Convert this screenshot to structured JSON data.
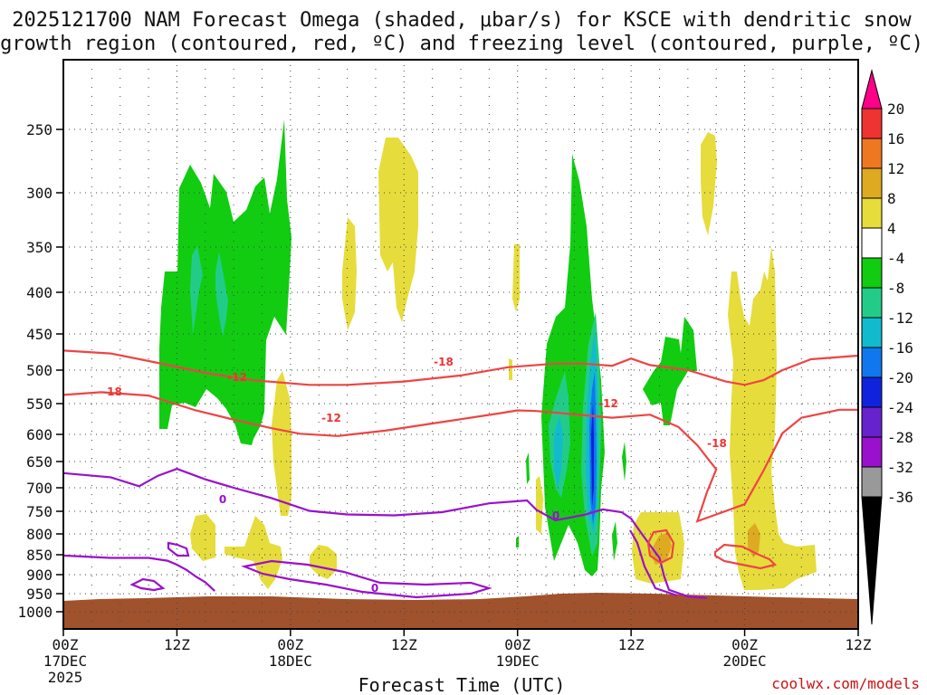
{
  "chart_data": {
    "type": "time-height cross section",
    "title_line1": "2025121700 NAM Forecast Omega (shaded, μbar/s) for KSCE with dendritic snow",
    "title_line2": "growth region (contoured, red, ºC) and freezing level (contoured, purple, ºC)",
    "xlabel": "Forecast Time (UTC)",
    "credit": "coolwx.com/models",
    "x_range_hours": [
      0,
      84
    ],
    "y_range_mb": [
      200,
      1050
    ],
    "pressure_levels": [
      "250",
      "300",
      "350",
      "400",
      "450",
      "500",
      "550",
      "600",
      "650",
      "700",
      "750",
      "800",
      "850",
      "900",
      "950",
      "1000"
    ],
    "x_ticks": [
      {
        "hour": 0,
        "time": "00Z",
        "date": "17DEC",
        "year": "2025"
      },
      {
        "hour": 12,
        "time": "12Z",
        "date": "",
        "year": ""
      },
      {
        "hour": 24,
        "time": "00Z",
        "date": "18DEC",
        "year": ""
      },
      {
        "hour": 36,
        "time": "12Z",
        "date": "",
        "year": ""
      },
      {
        "hour": 48,
        "time": "00Z",
        "date": "19DEC",
        "year": ""
      },
      {
        "hour": 60,
        "time": "12Z",
        "date": "",
        "year": ""
      },
      {
        "hour": 72,
        "time": "00Z",
        "date": "20DEC",
        "year": ""
      },
      {
        "hour": 84,
        "time": "12Z",
        "date": "",
        "year": ""
      }
    ],
    "colorbar": {
      "labels": [
        "20",
        "16",
        "12",
        "8",
        "4",
        "-4",
        "-8",
        "-12",
        "-16",
        "-20",
        "-24",
        "-28",
        "-32",
        "-36"
      ],
      "colors": [
        "#ff0088",
        "#ee3333",
        "#ee7722",
        "#ddaa22",
        "#e6dc3c",
        "#ffffff",
        "#11cc11",
        "#22cc88",
        "#11bbcc",
        "#1177ee",
        "#1122dd",
        "#6622cc",
        "#9911cc",
        "#999999",
        "#000000"
      ]
    },
    "contour_labels": {
      "red": [
        "-18",
        "-12",
        "-18",
        "-12",
        "-12",
        "-18"
      ],
      "purple": [
        "0",
        "0",
        "0"
      ]
    },
    "series": [
      {
        "name": "-18 ºC (red)",
        "points": [
          [
            0,
            473
          ],
          [
            5,
            477
          ],
          [
            10,
            490
          ],
          [
            15,
            504
          ],
          [
            20,
            515
          ],
          [
            26,
            522
          ],
          [
            30,
            522
          ],
          [
            36,
            517
          ],
          [
            42,
            508
          ],
          [
            47,
            496
          ],
          [
            52,
            491
          ],
          [
            55,
            491
          ],
          [
            58,
            494
          ],
          [
            60,
            484
          ],
          [
            62,
            493
          ],
          [
            66,
            500
          ],
          [
            70,
            517
          ],
          [
            72,
            522
          ],
          [
            74,
            515
          ],
          [
            76,
            500
          ],
          [
            79,
            485
          ],
          [
            84,
            480
          ]
        ]
      },
      {
        "name": "-12 ºC (red)",
        "points": [
          [
            0,
            537
          ],
          [
            4,
            533
          ],
          [
            9,
            538
          ],
          [
            14,
            561
          ],
          [
            18,
            576
          ],
          [
            22,
            590
          ],
          [
            25,
            599
          ],
          [
            29,
            603
          ],
          [
            34,
            594
          ],
          [
            40,
            580
          ],
          [
            46,
            566
          ],
          [
            48,
            561
          ],
          [
            50,
            562
          ],
          [
            53,
            566
          ],
          [
            58,
            573
          ],
          [
            62,
            568
          ],
          [
            65,
            588
          ],
          [
            67,
            620
          ],
          [
            69,
            665
          ],
          [
            68,
            710
          ],
          [
            67,
            772
          ],
          [
            72,
            735
          ],
          [
            74,
            667
          ],
          [
            76,
            598
          ],
          [
            78,
            573
          ],
          [
            82,
            560
          ],
          [
            84,
            560
          ]
        ]
      },
      {
        "name": "0 ºC freezing level (purple)",
        "points": [
          [
            0,
            672
          ],
          [
            5,
            680
          ],
          [
            8,
            697
          ],
          [
            10,
            677
          ],
          [
            12,
            664
          ],
          [
            15,
            684
          ],
          [
            18,
            700
          ],
          [
            22,
            722
          ],
          [
            26,
            749
          ],
          [
            30,
            757
          ],
          [
            35,
            759
          ],
          [
            40,
            752
          ],
          [
            45,
            733
          ],
          [
            49,
            727
          ],
          [
            50,
            747
          ],
          [
            52,
            770
          ],
          [
            55,
            758
          ],
          [
            57,
            746
          ],
          [
            59,
            752
          ],
          [
            60,
            766
          ],
          [
            61,
            796
          ],
          [
            62,
            827
          ],
          [
            63,
            858
          ],
          [
            63.5,
            905
          ],
          [
            64,
            940
          ],
          [
            66,
            958
          ],
          [
            68,
            962
          ]
        ]
      },
      {
        "name": "0 ºC low-level (purple)",
        "points": [
          [
            0,
            852
          ],
          [
            5,
            858
          ],
          [
            9,
            858
          ],
          [
            11,
            865
          ],
          [
            12,
            875
          ],
          [
            13,
            888
          ],
          [
            14,
            905
          ],
          [
            15,
            920
          ],
          [
            16,
            943
          ]
        ]
      }
    ]
  }
}
